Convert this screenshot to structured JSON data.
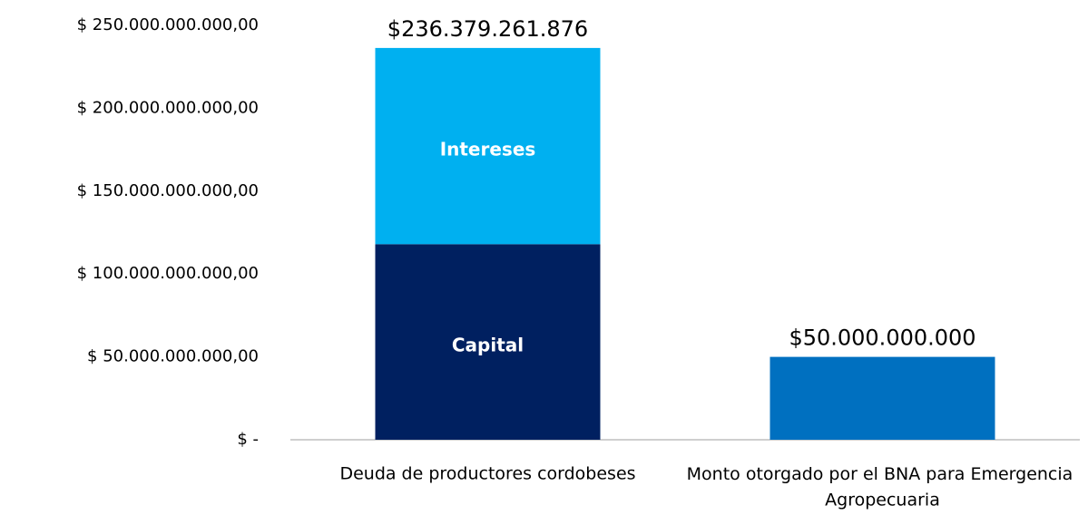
{
  "chart_data": {
    "type": "stacked_bar",
    "categories": [
      "Deuda de productores cordobeses",
      "Monto otorgado por el BNA para Emergencia Agropecuaria"
    ],
    "series": [
      {
        "name": "Capital",
        "color": "#002060",
        "values": [
          118000000000,
          null
        ]
      },
      {
        "name": "Intereses",
        "color": "#00b0f0",
        "values": [
          118379261876,
          null
        ]
      },
      {
        "color": "#0070c0",
        "values": [
          null,
          50000000000
        ]
      }
    ],
    "totals": [
      236379261876,
      50000000000
    ],
    "total_labels": [
      "$236.379.261.876",
      "$50.000.000.000"
    ],
    "ylim": [
      0,
      250000000000
    ],
    "yticks": [
      {
        "value": 0,
        "label": "$ -"
      },
      {
        "value": 50000000000,
        "label": "$ 50.000.000.000,00"
      },
      {
        "value": 100000000000,
        "label": "$ 100.000.000.000,00"
      },
      {
        "value": 150000000000,
        "label": "$ 150.000.000.000,00"
      },
      {
        "value": 200000000000,
        "label": "$ 200.000.000.000,00"
      },
      {
        "value": 250000000000,
        "label": "$ 250.000.000.000,00"
      }
    ],
    "grid": false
  }
}
